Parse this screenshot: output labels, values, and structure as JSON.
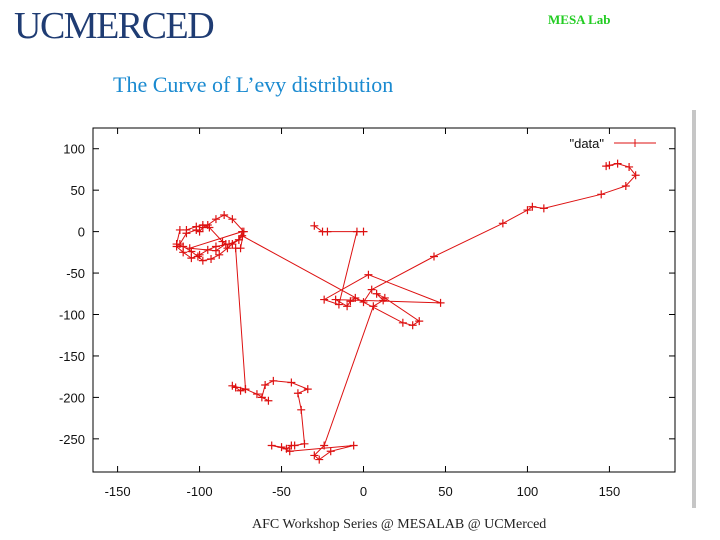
{
  "header": {
    "logo_text": "UCMERCED",
    "lab_text": "MESA Lab"
  },
  "slide": {
    "title": "The  Curve of L’evy distribution",
    "footer": "AFC Workshop Series @ MESALAB @ UCMerced"
  },
  "colors": {
    "series": "#dd1111",
    "title": "#1a8ad0",
    "logo": "#1f3c73",
    "lab": "#22cc22"
  },
  "chart_data": {
    "type": "line",
    "title": "",
    "xlabel": "",
    "ylabel": "",
    "xlim": [
      -165,
      190
    ],
    "ylim": [
      -290,
      125
    ],
    "xticks": [
      -150,
      -100,
      -50,
      0,
      50,
      100,
      150
    ],
    "yticks": [
      100,
      50,
      0,
      -50,
      -100,
      -150,
      -200,
      -250
    ],
    "grid": false,
    "legend": "top-right",
    "series": [
      {
        "name": "\"data\"",
        "marker": "+",
        "x": [
          -30,
          -25,
          -22,
          0,
          -4,
          -15,
          -24,
          3,
          47,
          -17,
          -10,
          -8,
          -5,
          24,
          30,
          34,
          13,
          8,
          12,
          6,
          -24,
          -30,
          -27,
          -20,
          -6,
          -45,
          -50,
          -56,
          -47,
          -44,
          -42,
          -36,
          -38,
          -40,
          -34,
          -44,
          -55,
          -60,
          -62,
          -58,
          -65,
          -72,
          -75,
          -78,
          -80,
          -72,
          -78,
          -75,
          -73,
          -80,
          -85,
          -90,
          -95,
          -98,
          -100,
          -102,
          -108,
          -112,
          -114,
          -110,
          -105,
          -100,
          -95,
          -90,
          -82,
          -76,
          -74,
          -106,
          -90,
          -84,
          -86,
          -94,
          -98,
          -102,
          -108,
          -112,
          -114,
          -110,
          -105,
          -101,
          -98,
          -93,
          -88,
          -83,
          -80,
          -76,
          -74,
          0,
          5,
          43,
          85,
          100,
          103,
          110,
          145,
          160,
          166,
          162,
          155,
          150,
          148
        ],
        "y": [
          7,
          0,
          0,
          0,
          0,
          -88,
          -82,
          -52,
          -86,
          -82,
          -90,
          -84,
          -80,
          -110,
          -113,
          -108,
          -80,
          -75,
          -83,
          -90,
          -258,
          -270,
          -275,
          -265,
          -258,
          -265,
          -260,
          -258,
          -262,
          -258,
          -258,
          -256,
          -215,
          -195,
          -190,
          -182,
          -180,
          -185,
          -200,
          -204,
          -196,
          -190,
          -192,
          -188,
          -186,
          -190,
          -20,
          -20,
          0,
          15,
          20,
          15,
          8,
          5,
          0,
          2,
          -2,
          -15,
          -18,
          -25,
          -32,
          -28,
          -22,
          -18,
          -15,
          -10,
          0,
          -20,
          -23,
          -15,
          -12,
          5,
          8,
          6,
          2,
          2,
          -15,
          -18,
          -24,
          -30,
          -35,
          -33,
          -28,
          -20,
          -15,
          -10,
          -5,
          -85,
          -70,
          -30,
          10,
          26,
          30,
          28,
          45,
          55,
          68,
          78,
          82,
          80,
          79
        ]
      }
    ]
  }
}
